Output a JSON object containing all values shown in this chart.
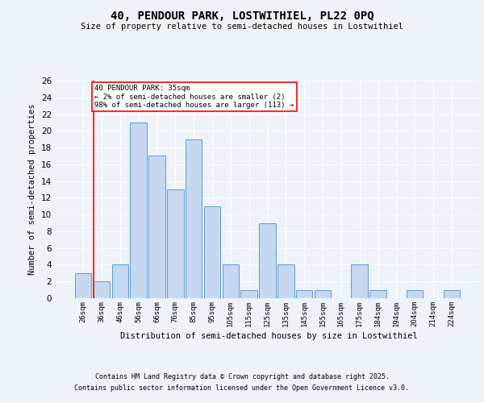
{
  "title1": "40, PENDOUR PARK, LOSTWITHIEL, PL22 0PQ",
  "title2": "Size of property relative to semi-detached houses in Lostwithiel",
  "xlabel": "Distribution of semi-detached houses by size in Lostwithiel",
  "ylabel": "Number of semi-detached properties",
  "categories": [
    "26sqm",
    "36sqm",
    "46sqm",
    "56sqm",
    "66sqm",
    "76sqm",
    "85sqm",
    "95sqm",
    "105sqm",
    "115sqm",
    "125sqm",
    "135sqm",
    "145sqm",
    "155sqm",
    "165sqm",
    "175sqm",
    "184sqm",
    "194sqm",
    "204sqm",
    "214sqm",
    "224sqm"
  ],
  "values": [
    3,
    2,
    4,
    21,
    17,
    13,
    19,
    11,
    4,
    1,
    9,
    4,
    1,
    1,
    0,
    4,
    1,
    0,
    1,
    0,
    1
  ],
  "bar_color": "#c5d8f0",
  "bar_edge_color": "#5b9bd5",
  "annotation_text": "40 PENDOUR PARK: 35sqm\n← 2% of semi-detached houses are smaller (2)\n98% of semi-detached houses are larger (113) →",
  "footer1": "Contains HM Land Registry data © Crown copyright and database right 2025.",
  "footer2": "Contains public sector information licensed under the Open Government Licence v3.0.",
  "bg_color": "#eef3f9",
  "ylim": [
    0,
    26
  ],
  "yticks": [
    0,
    2,
    4,
    6,
    8,
    10,
    12,
    14,
    16,
    18,
    20,
    22,
    24,
    26
  ]
}
